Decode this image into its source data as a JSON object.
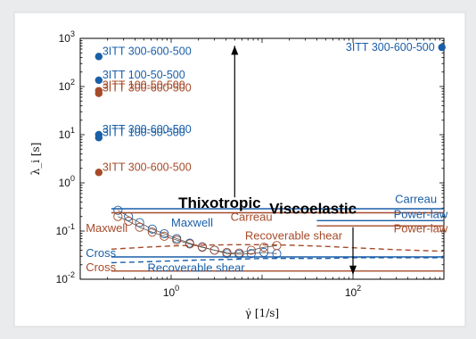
{
  "chart_data": {
    "type": "scatter",
    "xlabel": "γ̇ [1/s]",
    "ylabel": "λ_i [s]",
    "xscale": "log",
    "yscale": "log",
    "xlim": [
      0.1,
      1000
    ],
    "ylim": [
      0.01,
      1000
    ],
    "x_ticks": [
      {
        "value": 1,
        "label": "10^0"
      },
      {
        "value": 100,
        "label": "10^2"
      }
    ],
    "y_ticks": [
      {
        "value": 1000,
        "label": "10^3"
      },
      {
        "value": 100,
        "label": "10^2"
      },
      {
        "value": 10,
        "label": "10^1"
      },
      {
        "value": 1,
        "label": "10^0"
      },
      {
        "value": 0.1,
        "label": "10^-1"
      },
      {
        "value": 0.01,
        "label": "10^-2"
      }
    ],
    "grid": false,
    "colors": {
      "blue": "#1a5fa8",
      "brown": "#a64b2a"
    },
    "points": [
      {
        "x": 0.16,
        "y": 420,
        "label": "3ITT 300-600-500",
        "color": "blue"
      },
      {
        "x": 0.16,
        "y": 135,
        "label": "3ITT 100-50-500",
        "color": "blue"
      },
      {
        "x": 0.16,
        "y": 82,
        "label": "3ITT 100-50-500",
        "color": "brown"
      },
      {
        "x": 0.16,
        "y": 72,
        "label": "3ITT 300-600-500",
        "color": "brown"
      },
      {
        "x": 0.16,
        "y": 10,
        "label": "3ITT 300-600-500",
        "color": "blue"
      },
      {
        "x": 0.16,
        "y": 8.7,
        "label": "3ITT 100-50-500",
        "color": "blue"
      },
      {
        "x": 0.16,
        "y": 1.65,
        "label": "3ITT 300-600-500",
        "color": "brown"
      },
      {
        "x": 950,
        "y": 650,
        "label": "3ITT 300-600-500",
        "color": "blue"
      }
    ],
    "series": [
      {
        "name": "Maxwell",
        "color": "blue",
        "style": "solid-markers",
        "x": [
          0.26,
          0.34,
          0.45,
          0.62,
          0.84,
          1.15,
          1.6,
          2.2,
          3.0,
          4.1,
          5.6,
          7.6,
          10.5,
          14.5
        ],
        "y": [
          0.27,
          0.2,
          0.15,
          0.11,
          0.088,
          0.07,
          0.056,
          0.047,
          0.04,
          0.034,
          0.033,
          0.034,
          0.036,
          0.034
        ]
      },
      {
        "name": "Maxwell",
        "color": "brown",
        "style": "solid-markers",
        "x": [
          0.26,
          0.34,
          0.45,
          0.62,
          0.84,
          1.15,
          1.6,
          2.2,
          3.0,
          4.1,
          5.6,
          7.6,
          10.5,
          14.5
        ],
        "y": [
          0.2,
          0.16,
          0.12,
          0.095,
          0.078,
          0.065,
          0.054,
          0.046,
          0.04,
          0.036,
          0.035,
          0.04,
          0.046,
          0.05
        ]
      },
      {
        "name": "Carreau",
        "color": "blue",
        "style": "solid",
        "x": [
          0.22,
          1000
        ],
        "y": [
          0.29,
          0.29
        ]
      },
      {
        "name": "Carreau",
        "color": "brown",
        "style": "solid",
        "x": [
          0.22,
          1000
        ],
        "y": [
          0.24,
          0.24
        ]
      },
      {
        "name": "Power-law",
        "color": "blue",
        "style": "solid",
        "x": [
          40,
          1000
        ],
        "y": [
          0.165,
          0.165
        ]
      },
      {
        "name": "Power-law",
        "color": "brown",
        "style": "solid",
        "x": [
          40,
          1000
        ],
        "y": [
          0.128,
          0.128
        ]
      },
      {
        "name": "Recoverable shear",
        "color": "brown",
        "style": "dashed",
        "x": [
          0.22,
          0.5,
          1,
          2,
          5,
          10,
          20,
          50,
          100,
          300,
          1000
        ],
        "y": [
          0.042,
          0.046,
          0.049,
          0.051,
          0.052,
          0.052,
          0.051,
          0.048,
          0.045,
          0.041,
          0.038
        ]
      },
      {
        "name": "Recoverable shear",
        "color": "blue",
        "style": "dashed",
        "x": [
          0.22,
          0.5,
          1,
          2,
          5,
          10,
          20,
          50,
          100,
          300,
          1000
        ],
        "y": [
          0.022,
          0.023,
          0.024,
          0.025,
          0.026,
          0.027,
          0.027,
          0.027,
          0.028,
          0.028,
          0.028
        ]
      },
      {
        "name": "Cross",
        "color": "blue",
        "style": "solid",
        "x": [
          0.22,
          1000
        ],
        "y": [
          0.029,
          0.029
        ]
      },
      {
        "name": "Cross",
        "color": "brown",
        "style": "solid",
        "x": [
          0.22,
          1000
        ],
        "y": [
          0.0148,
          0.0148
        ]
      }
    ],
    "annotations": [
      {
        "text": "Maxwell",
        "x": 1.0,
        "y": 0.125,
        "color": "blue",
        "size": 13
      },
      {
        "text": "Maxwell",
        "x": 0.115,
        "y": 0.095,
        "color": "brown",
        "size": 13
      },
      {
        "text": "Carreau",
        "x": 4.5,
        "y": 0.165,
        "color": "brown",
        "size": 13
      },
      {
        "text": "Carreau",
        "x": 290,
        "y": 0.38,
        "color": "blue",
        "size": 13
      },
      {
        "text": "Power-law",
        "x": 280,
        "y": 0.185,
        "color": "blue",
        "size": 13
      },
      {
        "text": "Power-law",
        "x": 280,
        "y": 0.094,
        "color": "brown",
        "size": 13
      },
      {
        "text": "Recoverable shear",
        "x": 6.5,
        "y": 0.067,
        "color": "brown",
        "size": 13
      },
      {
        "text": "Recoverable shear",
        "x": 0.55,
        "y": 0.0145,
        "color": "blue",
        "size": 13
      },
      {
        "text": "Cross",
        "x": 0.115,
        "y": 0.029,
        "color": "blue",
        "size": 13
      },
      {
        "text": "Cross",
        "x": 0.115,
        "y": 0.0148,
        "color": "brown",
        "size": 13
      },
      {
        "text": "Thixotropic",
        "x": 1.2,
        "y": 0.3,
        "color": "black",
        "size": 17,
        "bold": true
      },
      {
        "text": "Viscoelastic",
        "x": 12,
        "y": 0.23,
        "color": "black",
        "size": 17,
        "bold": true
      }
    ],
    "arrows": [
      {
        "name": "thixotropic-arrow",
        "x": 5,
        "y_from": 0.5,
        "y_to": 700
      },
      {
        "name": "viscoelastic-arrow",
        "x": 100,
        "y_from": 0.12,
        "y_to": 0.0125
      }
    ]
  }
}
